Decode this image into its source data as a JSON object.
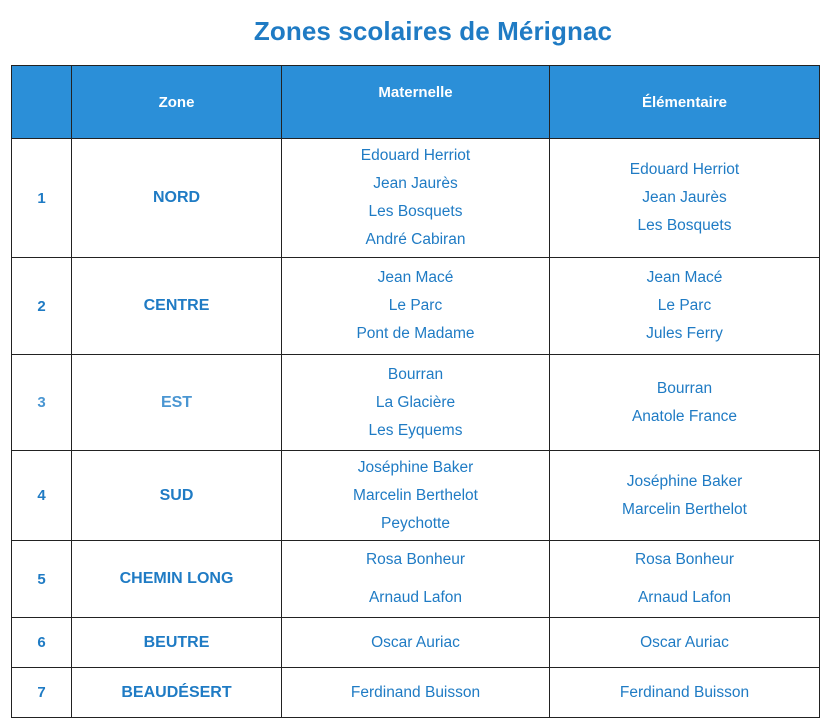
{
  "title": "Zones scolaires de Mérignac",
  "table": {
    "headers": {
      "num": "",
      "zone": "Zone",
      "maternelle": "Maternelle",
      "elementaire": "Élémentaire"
    },
    "rows": [
      {
        "num": "1",
        "zone": "NORD",
        "maternelle": [
          "Edouard Herriot",
          "Jean Jaurès",
          "Les Bosquets",
          "André Cabiran"
        ],
        "elementaire": [
          "Edouard Herriot",
          "Jean Jaurès",
          "Les Bosquets"
        ]
      },
      {
        "num": "2",
        "zone": "CENTRE",
        "maternelle": [
          "Jean Macé",
          "Le Parc",
          "Pont de Madame"
        ],
        "elementaire": [
          "Jean Macé",
          "Le Parc",
          "Jules Ferry"
        ]
      },
      {
        "num": "3",
        "zone": "EST",
        "maternelle": [
          "Bourran",
          "La Glacière",
          "Les Eyquems"
        ],
        "elementaire": [
          "Bourran",
          "Anatole France"
        ]
      },
      {
        "num": "4",
        "zone": "SUD",
        "maternelle": [
          "Joséphine Baker",
          "Marcelin Berthelot",
          "Peychotte"
        ],
        "elementaire": [
          "Joséphine Baker",
          "Marcelin Berthelot"
        ]
      },
      {
        "num": "5",
        "zone": "CHEMIN LONG",
        "maternelle": [
          "Rosa Bonheur",
          "Arnaud Lafon"
        ],
        "elementaire": [
          "Rosa Bonheur",
          "Arnaud Lafon"
        ]
      },
      {
        "num": "6",
        "zone": "BEUTRE",
        "maternelle": [
          "Oscar Auriac"
        ],
        "elementaire": [
          "Oscar Auriac"
        ]
      },
      {
        "num": "7",
        "zone": "BEAUDÉSERT",
        "maternelle": [
          "Ferdinand Buisson"
        ],
        "elementaire": [
          "Ferdinand Buisson"
        ]
      }
    ]
  }
}
